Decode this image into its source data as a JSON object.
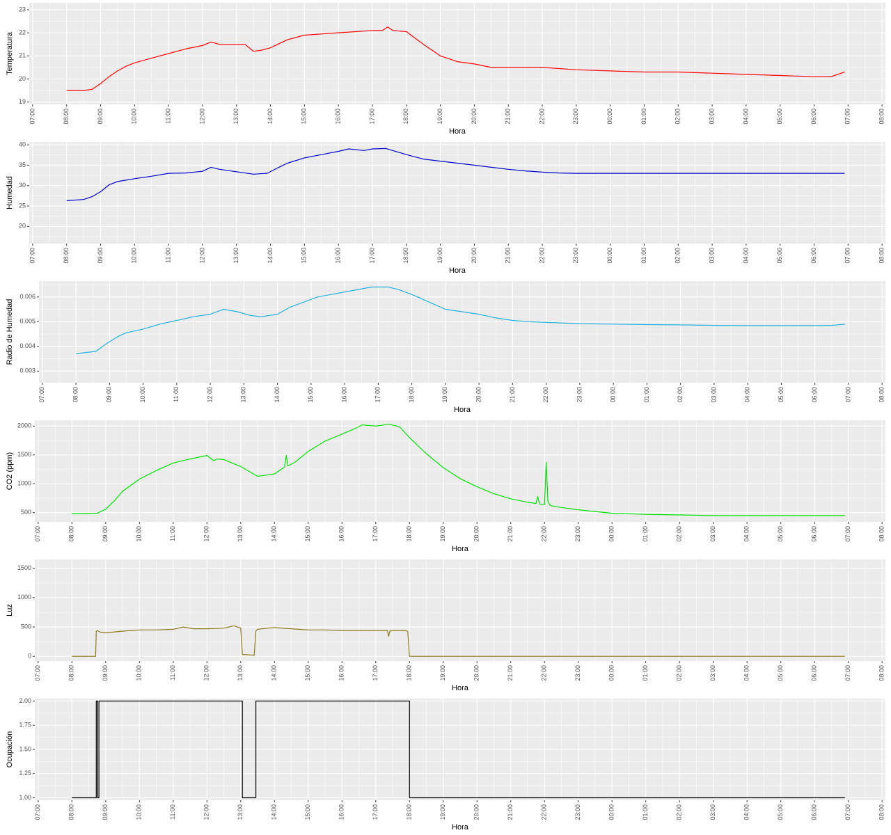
{
  "chart_data": [
    {
      "type": "line",
      "xlabel": "Hora",
      "ylabel": "Temperatura",
      "color": "#ff0000",
      "ylim": [
        18.9,
        23.3
      ],
      "yticks": [
        19,
        20,
        21,
        22,
        23
      ],
      "ytick_labels": [
        "19",
        "20",
        "21",
        "22",
        "23"
      ],
      "xticks": [
        "07:00",
        "08:00",
        "09:00",
        "10:00",
        "11:00",
        "12:00",
        "13:00",
        "14:00",
        "15:00",
        "16:00",
        "17:00",
        "18:00",
        "19:00",
        "20:00",
        "21:00",
        "22:00",
        "23:00",
        "00:00",
        "01:00",
        "02:00",
        "03:00",
        "04:00",
        "05:00",
        "06:00",
        "07:00",
        "08:00"
      ],
      "xlim": [
        6.9,
        32.1
      ],
      "x": [
        8.0,
        8.5,
        8.75,
        9.0,
        9.25,
        9.5,
        9.75,
        10.0,
        10.5,
        11.0,
        11.5,
        12.0,
        12.25,
        12.5,
        13.0,
        13.25,
        13.5,
        13.75,
        14.0,
        14.5,
        15.0,
        15.5,
        16.0,
        16.5,
        17.0,
        17.3,
        17.45,
        17.6,
        18.0,
        18.5,
        19.0,
        19.5,
        20.0,
        20.5,
        21.0,
        22.0,
        23.0,
        24.0,
        25.0,
        26.0,
        27.0,
        28.0,
        29.0,
        30.0,
        30.5,
        30.9
      ],
      "y": [
        19.5,
        19.5,
        19.55,
        19.8,
        20.1,
        20.35,
        20.55,
        20.7,
        20.9,
        21.1,
        21.3,
        21.45,
        21.6,
        21.5,
        21.5,
        21.5,
        21.2,
        21.25,
        21.35,
        21.7,
        21.9,
        21.95,
        22.0,
        22.05,
        22.1,
        22.1,
        22.25,
        22.1,
        22.05,
        21.5,
        21.0,
        20.75,
        20.65,
        20.5,
        20.5,
        20.5,
        20.4,
        20.35,
        20.3,
        20.3,
        20.25,
        20.2,
        20.15,
        20.1,
        20.1,
        20.3
      ]
    },
    {
      "type": "line",
      "xlabel": "Hora",
      "ylabel": "Humedad",
      "color": "#0000cc",
      "ylim": [
        15.8,
        40.7
      ],
      "yticks": [
        20,
        25,
        30,
        35,
        40
      ],
      "ytick_labels": [
        "20",
        "25",
        "30",
        "35",
        "40"
      ],
      "xticks": [
        "07:00",
        "08:00",
        "09:00",
        "10:00",
        "11:00",
        "12:00",
        "13:00",
        "14:00",
        "15:00",
        "16:00",
        "17:00",
        "18:00",
        "19:00",
        "20:00",
        "21:00",
        "22:00",
        "23:00",
        "00:00",
        "01:00",
        "02:00",
        "03:00",
        "04:00",
        "05:00",
        "06:00",
        "07:00",
        "08:00"
      ],
      "xlim": [
        6.9,
        32.1
      ],
      "x": [
        8.0,
        8.5,
        8.75,
        9.0,
        9.25,
        9.5,
        10.0,
        10.5,
        11.0,
        11.5,
        12.0,
        12.25,
        12.5,
        13.0,
        13.5,
        13.9,
        14.25,
        14.5,
        15.0,
        15.5,
        16.0,
        16.3,
        16.75,
        17.0,
        17.4,
        18.0,
        18.5,
        19.0,
        19.5,
        20.0,
        20.5,
        21.0,
        21.5,
        22.0,
        22.5,
        23.0,
        24.0,
        25.0,
        26.0,
        27.0,
        28.0,
        29.0,
        30.0,
        30.5,
        30.9
      ],
      "y": [
        26.3,
        26.6,
        27.3,
        28.5,
        30.2,
        31.0,
        31.7,
        32.3,
        33.0,
        33.1,
        33.5,
        34.5,
        34.0,
        33.4,
        32.8,
        33.0,
        34.5,
        35.5,
        36.8,
        37.6,
        38.4,
        39.0,
        38.6,
        39.0,
        39.1,
        37.6,
        36.5,
        36.0,
        35.5,
        35.0,
        34.5,
        34.0,
        33.6,
        33.3,
        33.1,
        33.0,
        33.0,
        33.0,
        33.0,
        33.0,
        33.0,
        33.0,
        33.0,
        33.0,
        33.0
      ]
    },
    {
      "type": "line",
      "xlabel": "Hora",
      "ylabel": "Radio de Humedad",
      "color": "#1fb1e0",
      "ylim": [
        0.00253,
        0.00664
      ],
      "yticks": [
        0.003,
        0.004,
        0.005,
        0.006
      ],
      "ytick_labels": [
        "0.003",
        "0.004",
        "0.005",
        "0.006"
      ],
      "xticks": [
        "07:00",
        "08:00",
        "09:00",
        "10:00",
        "11:00",
        "12:00",
        "13:00",
        "14:00",
        "15:00",
        "16:00",
        "17:00",
        "18:00",
        "19:00",
        "20:00",
        "21:00",
        "22:00",
        "23:00",
        "00:00",
        "01:00",
        "02:00",
        "03:00",
        "04:00",
        "05:00",
        "06:00",
        "07:00",
        "08:00"
      ],
      "xlim": [
        6.9,
        32.1
      ],
      "x": [
        8.0,
        8.6,
        8.9,
        9.25,
        9.5,
        10.0,
        10.5,
        11.0,
        11.5,
        12.0,
        12.2,
        12.4,
        12.8,
        13.2,
        13.5,
        14.0,
        14.4,
        14.8,
        15.2,
        15.6,
        16.0,
        16.4,
        16.8,
        17.0,
        17.3,
        17.6,
        18.0,
        18.5,
        19.0,
        19.5,
        20.0,
        20.5,
        21.0,
        21.5,
        22.0,
        23.0,
        24.0,
        25.0,
        26.0,
        27.0,
        28.0,
        29.0,
        30.0,
        30.5,
        30.9
      ],
      "y": [
        0.0037,
        0.0038,
        0.0041,
        0.0044,
        0.00455,
        0.0047,
        0.0049,
        0.00505,
        0.0052,
        0.0053,
        0.0054,
        0.0055,
        0.0054,
        0.00525,
        0.0052,
        0.0053,
        0.0056,
        0.0058,
        0.006,
        0.0061,
        0.0062,
        0.0063,
        0.0064,
        0.0064,
        0.0064,
        0.0063,
        0.0061,
        0.0058,
        0.0055,
        0.0054,
        0.0053,
        0.00515,
        0.00505,
        0.005,
        0.00497,
        0.00492,
        0.0049,
        0.00488,
        0.00487,
        0.00485,
        0.00484,
        0.00484,
        0.00484,
        0.00485,
        0.0049
      ]
    },
    {
      "type": "line",
      "xlabel": "Hora",
      "ylabel": "CO2 (ppm)",
      "color": "#00e000",
      "ylim": [
        340,
        2100
      ],
      "yticks": [
        500,
        1000,
        1500,
        2000
      ],
      "ytick_labels": [
        "500",
        "1000",
        "1500",
        "2000"
      ],
      "xticks": [
        "07:00",
        "08:00",
        "09:00",
        "10:00",
        "11:00",
        "12:00",
        "13:00",
        "14:00",
        "15:00",
        "16:00",
        "17:00",
        "18:00",
        "19:00",
        "20:00",
        "21:00",
        "22:00",
        "23:00",
        "00:00",
        "01:00",
        "02:00",
        "03:00",
        "04:00",
        "05:00",
        "06:00",
        "07:00",
        "08:00"
      ],
      "xlim": [
        6.9,
        32.1
      ],
      "x": [
        8.0,
        8.75,
        9.0,
        9.25,
        9.5,
        10.0,
        10.5,
        11.0,
        11.5,
        12.0,
        12.2,
        12.3,
        12.5,
        13.0,
        13.5,
        14.0,
        14.3,
        14.35,
        14.4,
        14.6,
        15.0,
        15.5,
        16.0,
        16.4,
        16.6,
        17.0,
        17.4,
        17.7,
        18.0,
        18.5,
        19.0,
        19.5,
        20.0,
        20.5,
        21.0,
        21.5,
        21.75,
        21.8,
        21.85,
        22.0,
        22.05,
        22.1,
        22.15,
        22.2,
        22.5,
        23.0,
        23.5,
        24.0,
        25.0,
        26.0,
        27.0,
        28.0,
        29.0,
        30.0,
        30.9
      ],
      "y": [
        480,
        490,
        560,
        700,
        870,
        1080,
        1230,
        1360,
        1430,
        1490,
        1400,
        1430,
        1420,
        1300,
        1130,
        1170,
        1290,
        1490,
        1310,
        1370,
        1560,
        1740,
        1860,
        1960,
        2020,
        2000,
        2030,
        1990,
        1800,
        1520,
        1280,
        1090,
        950,
        830,
        740,
        680,
        660,
        780,
        650,
        640,
        1370,
        700,
        640,
        620,
        590,
        550,
        520,
        490,
        470,
        460,
        450,
        450,
        450,
        450,
        450
      ]
    },
    {
      "type": "line",
      "xlabel": "Hora",
      "ylabel": "Luz",
      "color": "#8c7a18",
      "ylim": [
        -80,
        1650
      ],
      "yticks": [
        0,
        500,
        1000,
        1500
      ],
      "ytick_labels": [
        "0",
        "500",
        "1000",
        "1500"
      ],
      "xticks": [
        "07:00",
        "08:00",
        "09:00",
        "10:00",
        "11:00",
        "12:00",
        "13:00",
        "14:00",
        "15:00",
        "16:00",
        "17:00",
        "18:00",
        "19:00",
        "20:00",
        "21:00",
        "22:00",
        "23:00",
        "00:00",
        "01:00",
        "02:00",
        "03:00",
        "04:00",
        "05:00",
        "06:00",
        "07:00",
        "08:00"
      ],
      "xlim": [
        6.9,
        32.1
      ],
      "x": [
        8.0,
        8.7,
        8.72,
        8.75,
        8.85,
        9.0,
        9.5,
        10.0,
        10.5,
        11.0,
        11.3,
        11.6,
        12.0,
        12.5,
        12.8,
        13.0,
        13.05,
        13.1,
        13.4,
        13.45,
        13.5,
        13.8,
        14.0,
        14.5,
        15.0,
        15.5,
        16.0,
        16.5,
        17.0,
        17.35,
        17.38,
        17.42,
        17.5,
        17.9,
        17.95,
        18.0,
        19.0,
        20.0,
        22.0,
        24.0,
        26.0,
        28.0,
        30.0,
        30.9
      ],
      "y": [
        0,
        0,
        420,
        440,
        410,
        400,
        430,
        450,
        450,
        460,
        500,
        470,
        470,
        480,
        520,
        480,
        30,
        30,
        20,
        430,
        460,
        480,
        490,
        470,
        450,
        450,
        440,
        440,
        440,
        440,
        340,
        430,
        440,
        440,
        420,
        0,
        0,
        0,
        0,
        0,
        0,
        0,
        0,
        0
      ]
    },
    {
      "type": "line",
      "xlabel": "Hora",
      "ylabel": "Ocupación",
      "color": "#000000",
      "ylim": [
        0.975,
        2.025
      ],
      "yticks": [
        1.0,
        1.25,
        1.5,
        1.75,
        2.0
      ],
      "ytick_labels": [
        "1.00",
        "1.25",
        "1.50",
        "1.75",
        "2.00"
      ],
      "xticks": [
        "07:00",
        "08:00",
        "09:00",
        "10:00",
        "11:00",
        "12:00",
        "13:00",
        "14:00",
        "15:00",
        "16:00",
        "17:00",
        "18:00",
        "19:00",
        "20:00",
        "21:00",
        "22:00",
        "23:00",
        "00:00",
        "01:00",
        "02:00",
        "03:00",
        "04:00",
        "05:00",
        "06:00",
        "07:00",
        "08:00"
      ],
      "xlim": [
        6.9,
        32.1
      ],
      "x": [
        8.0,
        8.72,
        8.72,
        8.76,
        8.76,
        8.8,
        8.8,
        8.84,
        8.84,
        13.05,
        13.05,
        13.45,
        13.45,
        18.0,
        18.0,
        30.9
      ],
      "y": [
        1,
        1,
        2,
        2,
        1,
        1,
        2,
        2,
        2,
        2,
        1,
        1,
        2,
        2,
        1,
        1
      ]
    }
  ]
}
